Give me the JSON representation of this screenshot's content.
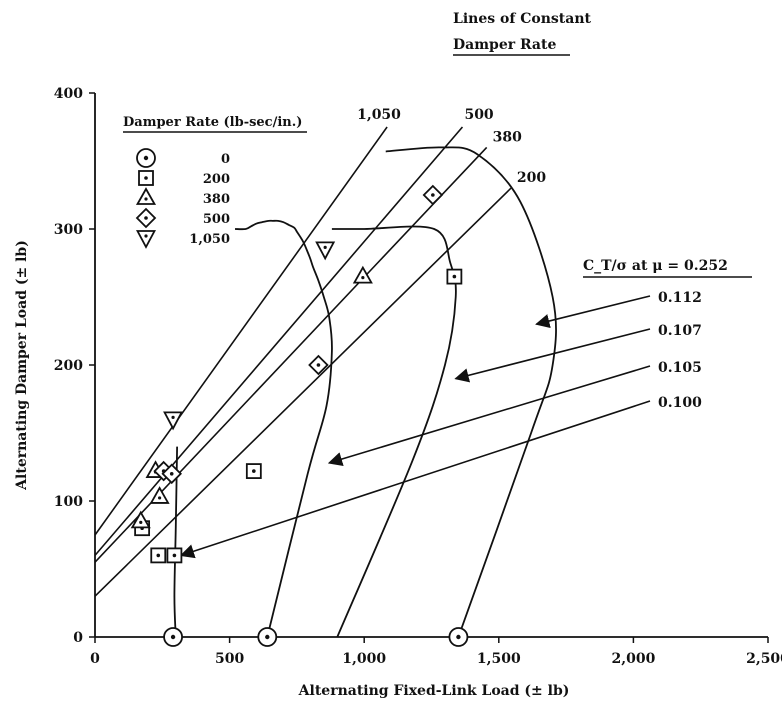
{
  "chart_data": {
    "type": "scatter",
    "title": "",
    "xlabel": "Alternating Fixed-Link Load (± lb)",
    "ylabel": "Alternating Damper Load (± lb)",
    "xlim": [
      0,
      2500
    ],
    "ylim": [
      0,
      400
    ],
    "x_ticks": [
      "0",
      "500",
      "1,000",
      "1,500",
      "2,000",
      "2,500"
    ],
    "y_ticks": [
      "0",
      "100",
      "200",
      "300",
      "400"
    ],
    "grid": false,
    "legend": {
      "title": "Damper Rate (lb-sec/in.)",
      "placement": "top-left",
      "entries": [
        {
          "label": "0",
          "marker": "circle-dot"
        },
        {
          "label": "200",
          "marker": "square-dot"
        },
        {
          "label": "380",
          "marker": "triangle-up"
        },
        {
          "label": "500",
          "marker": "diamond"
        },
        {
          "label": "1,050",
          "marker": "triangle-down"
        }
      ]
    },
    "series": [
      {
        "name": "0",
        "marker": "circle-dot",
        "points": [
          [
            290,
            0
          ],
          [
            640,
            0
          ],
          [
            1350,
            0
          ]
        ]
      },
      {
        "name": "200",
        "marker": "square-dot",
        "points": [
          [
            175,
            80
          ],
          [
            235,
            60
          ],
          [
            295,
            60
          ],
          [
            590,
            122
          ],
          [
            1335,
            265
          ]
        ]
      },
      {
        "name": "380",
        "marker": "triangle-up",
        "points": [
          [
            170,
            85
          ],
          [
            225,
            122
          ],
          [
            240,
            103
          ],
          [
            995,
            265
          ]
        ]
      },
      {
        "name": "500",
        "marker": "diamond",
        "points": [
          [
            255,
            122
          ],
          [
            285,
            120
          ],
          [
            830,
            200
          ],
          [
            1255,
            325
          ]
        ]
      },
      {
        "name": "1,050",
        "marker": "triangle-down",
        "points": [
          [
            290,
            160
          ],
          [
            855,
            285
          ]
        ]
      }
    ],
    "rate_lines": {
      "header": [
        "Lines of Constant",
        "Damper Rate"
      ],
      "lines": [
        {
          "label": "1,050",
          "from": [
            0,
            75
          ],
          "to": [
            1085,
            375
          ]
        },
        {
          "label": "500",
          "from": [
            0,
            60
          ],
          "to": [
            1365,
            375
          ]
        },
        {
          "label": "380",
          "from": [
            0,
            55
          ],
          "to": [
            1455,
            360
          ]
        },
        {
          "label": "200",
          "from": [
            0,
            30
          ],
          "to": [
            1545,
            330
          ]
        }
      ]
    },
    "thrust_curves": {
      "header": "C_T/σ at μ = 0.252",
      "curves": [
        {
          "label": "0.100",
          "points": [
            [
              300,
              0
            ],
            [
              295,
              30
            ],
            [
              300,
              80
            ],
            [
              305,
              140
            ]
          ],
          "arrow_to": [
            320,
            60
          ]
        },
        {
          "label": "0.105",
          "points": [
            [
              640,
              0
            ],
            [
              790,
              120
            ],
            [
              860,
              170
            ],
            [
              880,
              210
            ],
            [
              870,
              235
            ],
            [
              850,
              250
            ],
            [
              830,
              262
            ],
            [
              810,
              272
            ],
            [
              800,
              278
            ],
            [
              790,
              283
            ],
            [
              775,
              290
            ],
            [
              760,
              295
            ],
            [
              750,
              298
            ],
            [
              740,
              301
            ],
            [
              720,
              303
            ],
            [
              700,
              305
            ],
            [
              680,
              306
            ],
            [
              660,
              306
            ],
            [
              645,
              306
            ],
            [
              620,
              305
            ],
            [
              600,
              304
            ],
            [
              580,
              302
            ],
            [
              560,
              300
            ],
            [
              520,
              300
            ]
          ],
          "arrow_to": [
            870,
            128
          ]
        },
        {
          "label": "0.107",
          "points": [
            [
              900,
              0
            ],
            [
              1180,
              130
            ],
            [
              1300,
              200
            ],
            [
              1340,
              250
            ],
            [
              1320,
              275
            ],
            [
              1260,
              300
            ],
            [
              1000,
              300
            ],
            [
              880,
              300
            ]
          ],
          "arrow_to": [
            1340,
            190
          ]
        },
        {
          "label": "0.112",
          "points": [
            [
              1350,
              0
            ],
            [
              1620,
              150
            ],
            [
              1700,
              200
            ],
            [
              1700,
              250
            ],
            [
              1580,
              320
            ],
            [
              1420,
              355
            ],
            [
              1285,
              360
            ],
            [
              1080,
              357
            ]
          ],
          "arrow_to": [
            1640,
            230
          ]
        }
      ]
    }
  }
}
